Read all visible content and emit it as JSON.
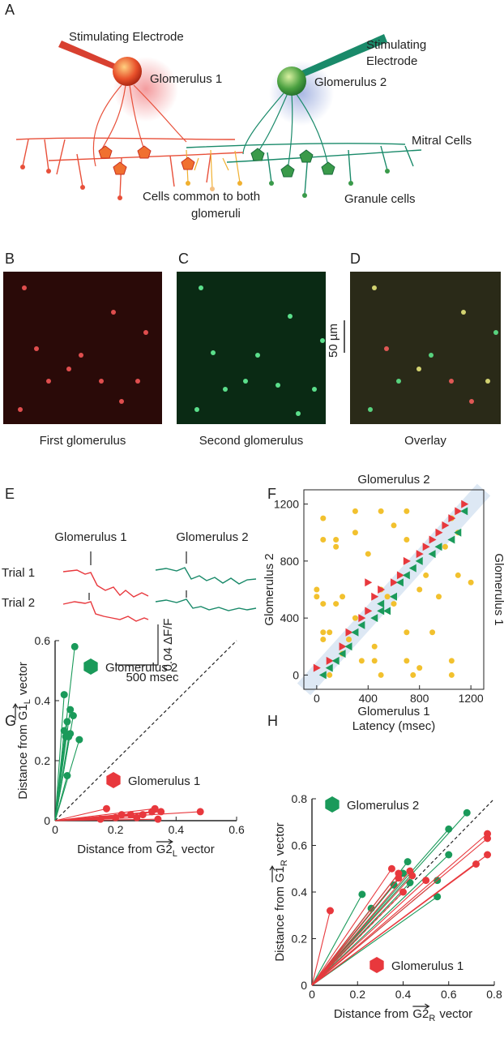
{
  "panel_labels": [
    "A",
    "B",
    "C",
    "D",
    "E",
    "F",
    "G",
    "H"
  ],
  "diagram": {
    "electrode_1": "Stimulating Electrode",
    "glomerulus_1": "Glomerulus 1",
    "electrode_2": [
      "Stimulating",
      "Electrode"
    ],
    "glomerulus_2": "Glomerulus 2",
    "mitral_cells": "Mitral Cells",
    "common_cells": [
      "Cells common to both",
      "glomeruli"
    ],
    "granule_cells": "Granule cells"
  },
  "images": {
    "captions": [
      "First glomerulus",
      "Second glomerulus",
      "Overlay"
    ],
    "scale_bar": "50 µm"
  },
  "traces": {
    "glomeruli": [
      "Glomerulus 1",
      "Glomerulus 2"
    ],
    "trials": [
      "Trial 1",
      "Trial 2"
    ],
    "y_scale": "0.04 ΔF/F",
    "x_scale": "500 msec"
  },
  "chart_data": [
    {
      "type": "scatter",
      "top_label": "Glomerulus 2",
      "right_label": "Glomerulus 1",
      "xlabel": [
        "Glomerulus 1",
        "Latency (msec)"
      ],
      "ylabel": "Glomerulus 2",
      "xlim": [
        -100,
        1300
      ],
      "ylim": [
        -100,
        1300
      ],
      "xticks": [
        0,
        400,
        800,
        1200
      ],
      "yticks": [
        0,
        400,
        800,
        1200
      ],
      "frame": true,
      "diagonal_band": true,
      "series": [
        {
          "color": "#f2c12e",
          "marker": "circle",
          "x": [
            50,
            50,
            300,
            300,
            500,
            600,
            700,
            1050,
            700,
            1100,
            1000,
            150,
            150,
            0,
            0,
            50,
            150,
            200,
            500,
            550,
            600,
            800,
            850,
            1100,
            950,
            50,
            50,
            100,
            250,
            300,
            450,
            450,
            350,
            500,
            700,
            750,
            800,
            1050,
            1050,
            900,
            700,
            200,
            100,
            1200,
            400
          ],
          "values": [
            1100,
            950,
            1150,
            1000,
            1150,
            1050,
            950,
            1100,
            1150,
            1000,
            900,
            900,
            950,
            600,
            550,
            500,
            500,
            550,
            600,
            550,
            500,
            600,
            700,
            700,
            550,
            300,
            250,
            300,
            250,
            400,
            200,
            100,
            100,
            0,
            100,
            0,
            50,
            100,
            0,
            300,
            300,
            150,
            0,
            650,
            850
          ]
        },
        {
          "color": "#e8383d",
          "marker": "triangle-right",
          "x": [
            0,
            100,
            200,
            250,
            350,
            400,
            450,
            500,
            600,
            650,
            700,
            800,
            850,
            900,
            950,
            1000,
            1050,
            1100,
            1150,
            400
          ],
          "values": [
            50,
            100,
            200,
            300,
            400,
            450,
            550,
            600,
            650,
            700,
            800,
            850,
            900,
            950,
            1000,
            1050,
            1100,
            1150,
            1200,
            650
          ]
        },
        {
          "color": "#1a9a5a",
          "marker": "triangle-left",
          "x": [
            50,
            100,
            150,
            200,
            250,
            300,
            350,
            450,
            500,
            550,
            600,
            650,
            700,
            750,
            800,
            900,
            950,
            1050,
            1100,
            1150,
            500
          ],
          "values": [
            0,
            50,
            100,
            150,
            200,
            300,
            350,
            400,
            500,
            450,
            550,
            650,
            700,
            750,
            800,
            850,
            900,
            950,
            1000,
            1150,
            450
          ]
        }
      ]
    },
    {
      "type": "scatter",
      "rays": true,
      "diagonal": true,
      "xlabel": {
        "text": "Distance from",
        "vector": "G2",
        "sub": "L",
        "suffix": "vector"
      },
      "ylabel": {
        "text": "Distance from",
        "vector": "G1",
        "sub": "L",
        "suffix": "vector"
      },
      "xlim": [
        0,
        0.6
      ],
      "ylim": [
        0,
        0.6
      ],
      "xticks": [
        0,
        0.2,
        0.4,
        0.6
      ],
      "yticks": [
        0,
        0.2,
        0.4,
        0.6
      ],
      "series": [
        {
          "name": "Glomerulus 2",
          "color": "#1a9a5a",
          "marker": "circle",
          "x": [
            0.065,
            0.03,
            0.05,
            0.06,
            0.04,
            0.03,
            0.05,
            0.045,
            0.08,
            0.035,
            0.04
          ],
          "values": [
            0.58,
            0.42,
            0.37,
            0.35,
            0.33,
            0.3,
            0.29,
            0.28,
            0.27,
            0.28,
            0.15
          ]
        },
        {
          "name": "Glomerulus 1",
          "color": "#e8383d",
          "marker": "circle",
          "x": [
            0.48,
            0.35,
            0.33,
            0.32,
            0.29,
            0.25,
            0.22,
            0.2,
            0.17,
            0.15,
            0.34,
            0.27
          ],
          "values": [
            0.03,
            0.03,
            0.04,
            0.03,
            0.02,
            0.02,
            0.02,
            0.01,
            0.04,
            0.005,
            0.005,
            0.01
          ]
        }
      ]
    },
    {
      "type": "scatter",
      "rays": true,
      "diagonal": true,
      "xlabel": {
        "text": "Distance from",
        "vector": "G2",
        "sub": "R",
        "suffix": "vector"
      },
      "ylabel": {
        "text": "Distance from",
        "vector": "G1",
        "sub": "R",
        "suffix": "vector"
      },
      "xlim": [
        0,
        0.8
      ],
      "ylim": [
        0,
        0.8
      ],
      "xticks": [
        0,
        0.2,
        0.4,
        0.6,
        0.8
      ],
      "yticks": [
        0,
        0.2,
        0.4,
        0.6,
        0.8
      ],
      "series": [
        {
          "name": "Glomerulus 2",
          "color": "#1a9a5a",
          "marker": "circle",
          "x": [
            0.68,
            0.6,
            0.42,
            0.4,
            0.22,
            0.26,
            0.43,
            0.55,
            0.6,
            0.55,
            0.36
          ],
          "values": [
            0.74,
            0.67,
            0.53,
            0.48,
            0.39,
            0.33,
            0.44,
            0.45,
            0.56,
            0.38,
            0.43
          ]
        },
        {
          "name": "Glomerulus 1",
          "color": "#e8383d",
          "marker": "circle",
          "x": [
            0.08,
            0.35,
            0.38,
            0.43,
            0.44,
            0.4,
            0.77,
            0.77,
            0.77,
            0.72,
            0.38,
            0.5
          ],
          "values": [
            0.32,
            0.5,
            0.48,
            0.49,
            0.47,
            0.4,
            0.65,
            0.63,
            0.56,
            0.52,
            0.46,
            0.45
          ]
        }
      ]
    }
  ]
}
